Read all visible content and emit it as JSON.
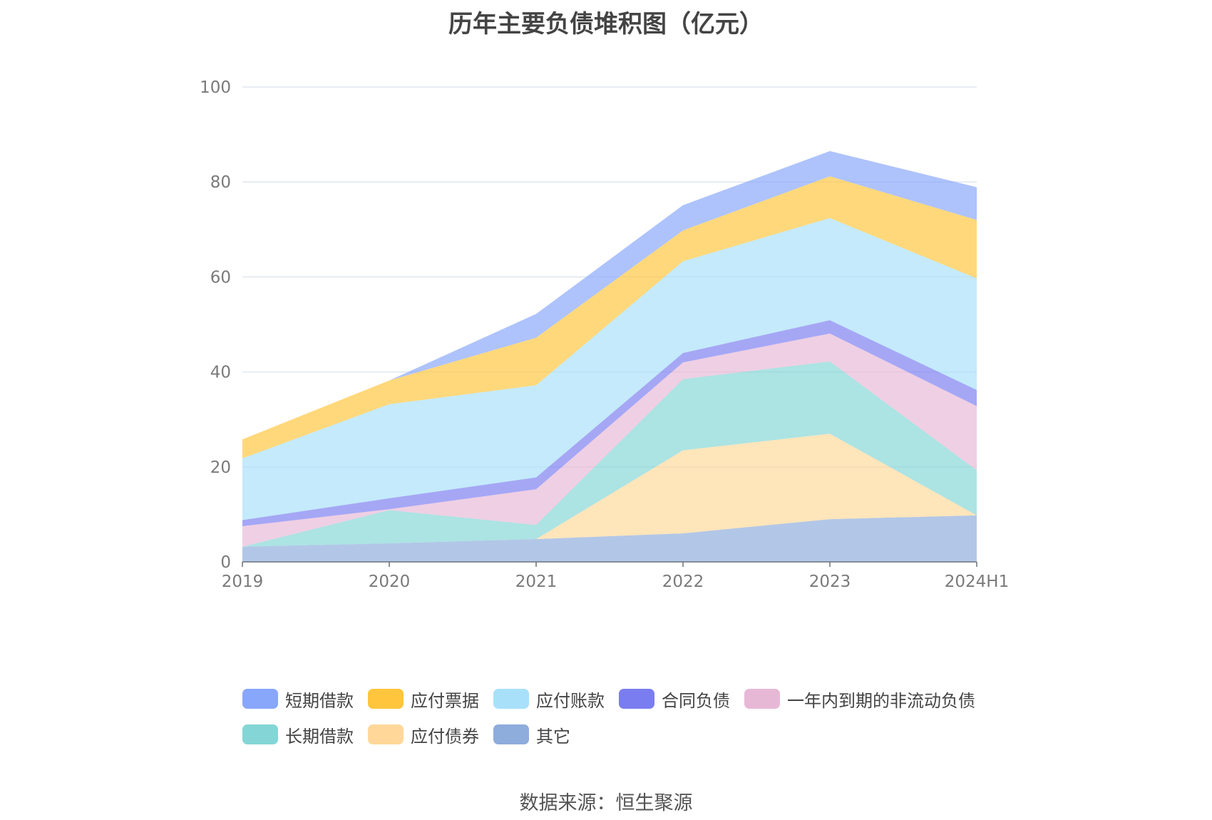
{
  "chart_data": {
    "type": "area",
    "stacked": true,
    "title": "历年主要负债堆积图（亿元）",
    "x": [
      "2019",
      "2020",
      "2021",
      "2022",
      "2023",
      "2024H1"
    ],
    "y_ticks": [
      "0",
      "20",
      "40",
      "60",
      "80",
      "100"
    ],
    "ylim": [
      0,
      100
    ],
    "grid": true,
    "legend_position": "bottom",
    "series": [
      {
        "name": "其它",
        "color": "#8eacdc",
        "values": [
          3.2,
          3.9,
          4.8,
          6.0,
          9.0,
          9.8
        ]
      },
      {
        "name": "应付债券",
        "color": "#ffd899",
        "values": [
          0.0,
          0.0,
          0.0,
          17.5,
          18.0,
          0.0
        ]
      },
      {
        "name": "长期借款",
        "color": "#84d6d6",
        "values": [
          0.0,
          7.0,
          3.0,
          15.0,
          15.2,
          9.5
        ]
      },
      {
        "name": "一年内到期的非流动负债",
        "color": "#e7b8d6",
        "values": [
          4.3,
          0.2,
          7.5,
          3.5,
          5.9,
          13.5
        ]
      },
      {
        "name": "合同负债",
        "color": "#7a7df0",
        "values": [
          1.3,
          2.3,
          2.5,
          2.0,
          2.8,
          3.4
        ]
      },
      {
        "name": "应付账款",
        "color": "#a8e0fa",
        "values": [
          13.0,
          19.8,
          19.4,
          19.3,
          21.5,
          23.5
        ]
      },
      {
        "name": "应付票据",
        "color": "#ffc53d",
        "values": [
          4.0,
          5.0,
          10.0,
          6.5,
          8.8,
          12.3
        ]
      },
      {
        "name": "短期借款",
        "color": "#88a6fa",
        "values": [
          0.0,
          0.0,
          5.0,
          5.3,
          5.3,
          6.9
        ]
      }
    ]
  },
  "legend": {
    "row1": [
      {
        "label": "短期借款",
        "color": "#88a6fa"
      },
      {
        "label": "应付票据",
        "color": "#ffc53d"
      },
      {
        "label": "应付账款",
        "color": "#a8e0fa"
      },
      {
        "label": "合同负债",
        "color": "#7a7df0"
      },
      {
        "label": "一年内到期的非流动负债",
        "color": "#e7b8d6"
      }
    ],
    "row2": [
      {
        "label": "长期借款",
        "color": "#84d6d6"
      },
      {
        "label": "应付债券",
        "color": "#ffd899"
      },
      {
        "label": "其它",
        "color": "#8eacdc"
      }
    ]
  },
  "source": "数据来源：恒生聚源"
}
